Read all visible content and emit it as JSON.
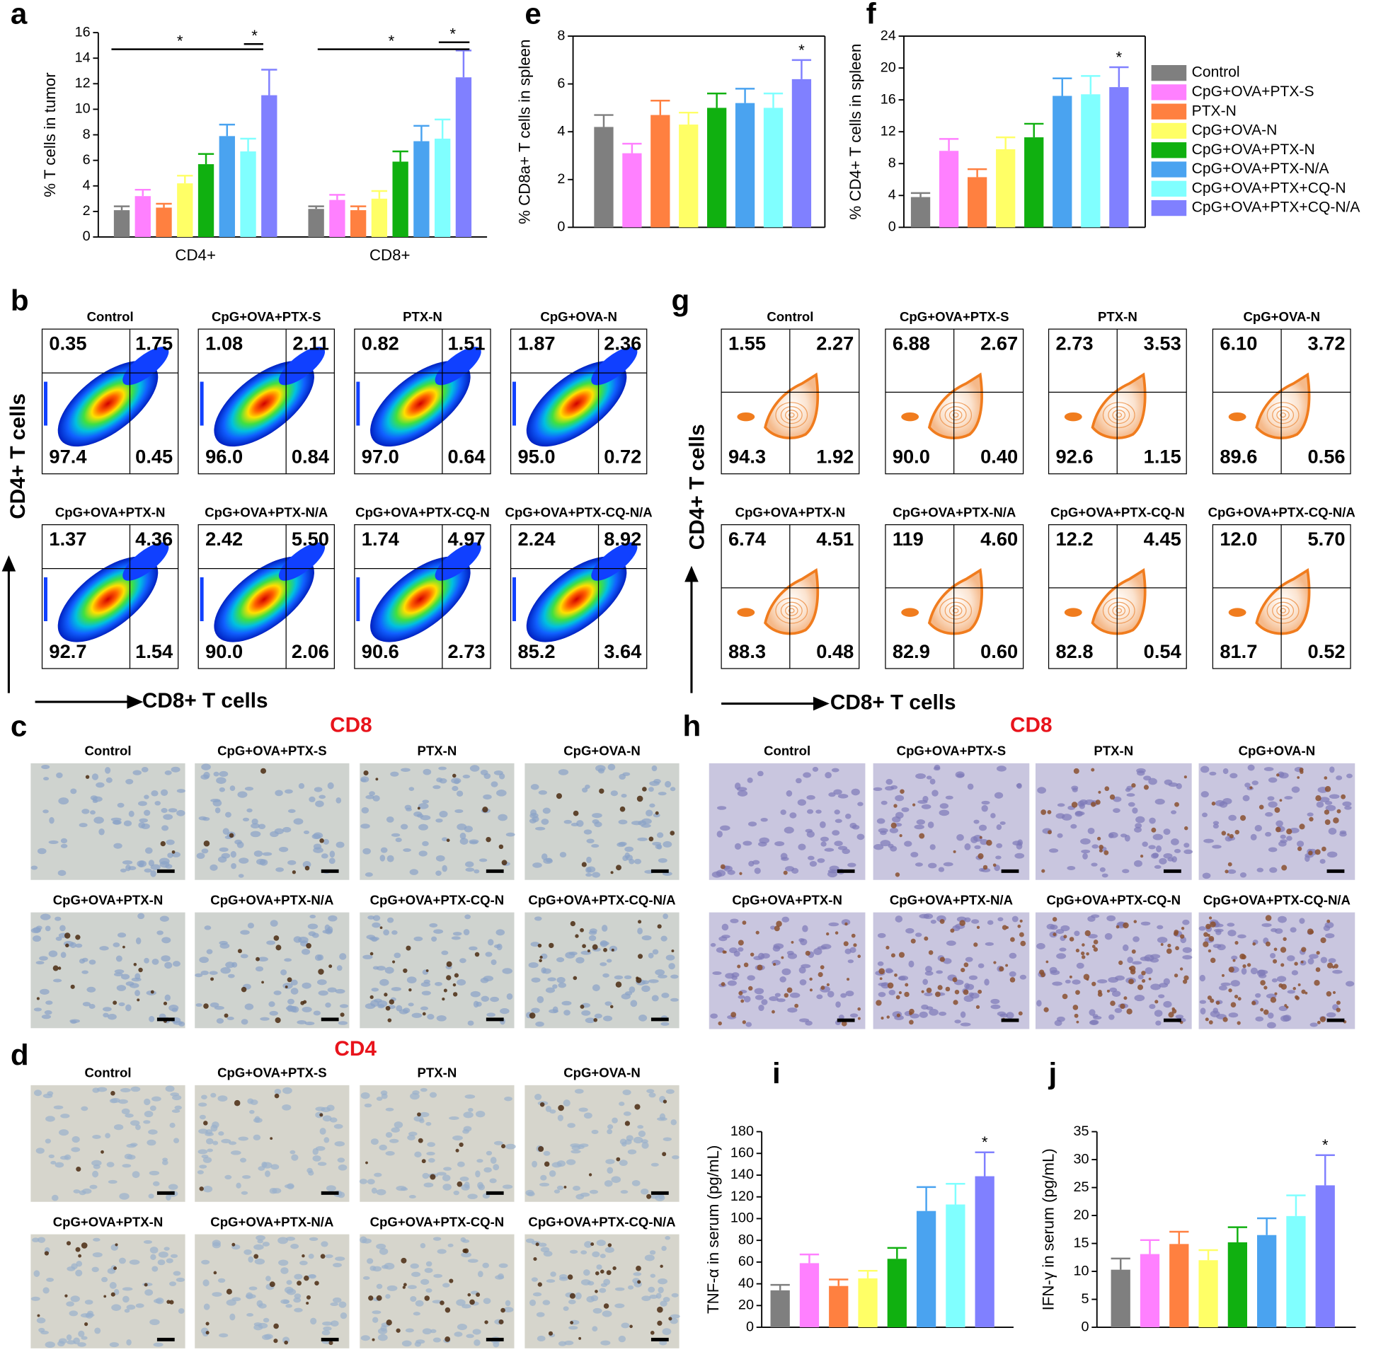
{
  "legend": {
    "names": [
      "Control",
      "CpG+OVA+PTX-S",
      "PTX-N",
      "CpG+OVA-N",
      "CpG+OVA+PTX-N",
      "CpG+OVA+PTX-N/A",
      "CpG+OVA+PTX+CQ-N",
      "CpG+OVA+PTX+CQ-N/A"
    ],
    "colors": [
      "#7f7f7f",
      "#ff80ff",
      "#ff8040",
      "#ffff66",
      "#10b010",
      "#4aa3f0",
      "#80ffff",
      "#8080ff"
    ]
  },
  "chart_data": [
    {
      "type": "bar",
      "letter": "a",
      "y_label": "% T cells in tumor",
      "categories": [
        "CD4+",
        "CD8+"
      ],
      "series": [
        {
          "values": [
            2.1,
            2.2
          ],
          "errors": [
            0.3,
            0.2
          ]
        },
        {
          "values": [
            3.2,
            2.9
          ],
          "errors": [
            0.5,
            0.4
          ]
        },
        {
          "values": [
            2.3,
            2.1
          ],
          "errors": [
            0.3,
            0.3
          ]
        },
        {
          "values": [
            4.2,
            3.0
          ],
          "errors": [
            0.6,
            0.6
          ]
        },
        {
          "values": [
            5.7,
            5.9
          ],
          "errors": [
            0.8,
            0.8
          ]
        },
        {
          "values": [
            7.9,
            7.5
          ],
          "errors": [
            0.9,
            1.2
          ]
        },
        {
          "values": [
            6.7,
            7.7
          ],
          "errors": [
            1.0,
            1.5
          ]
        },
        {
          "values": [
            11.1,
            12.5
          ],
          "errors": [
            2.0,
            2.1
          ]
        }
      ],
      "ylim": [
        0,
        16
      ],
      "yticks": [
        0,
        2,
        4,
        6,
        8,
        10,
        12,
        14,
        16
      ],
      "annotations": [
        "*",
        "*",
        "*",
        "*"
      ]
    },
    {
      "type": "bar",
      "letter": "e",
      "y_label": "% CD8a+ T cells in spleen",
      "values": [
        4.2,
        3.1,
        4.7,
        4.3,
        5.0,
        5.2,
        5.0,
        6.2
      ],
      "errors": [
        0.5,
        0.4,
        0.6,
        0.5,
        0.6,
        0.6,
        0.6,
        0.8
      ],
      "ylim": [
        0,
        8
      ],
      "yticks": [
        0,
        2,
        4,
        6,
        8
      ],
      "annotation": "*"
    },
    {
      "type": "bar",
      "letter": "f",
      "y_label": "% CD4+ T cells in spleen",
      "values": [
        3.8,
        9.6,
        6.3,
        9.8,
        11.3,
        16.5,
        16.7,
        17.6
      ],
      "errors": [
        0.5,
        1.5,
        1.0,
        1.5,
        1.7,
        2.2,
        2.3,
        2.5
      ],
      "ylim": [
        0,
        24
      ],
      "yticks": [
        0,
        4,
        8,
        12,
        16,
        20,
        24
      ],
      "annotation": "*"
    },
    {
      "type": "bar",
      "letter": "i",
      "y_label": "TNF-α in serum (pg/mL)",
      "values": [
        34,
        59,
        38,
        45,
        63,
        107,
        113,
        139
      ],
      "errors": [
        5,
        8,
        6,
        7,
        10,
        22,
        19,
        22
      ],
      "ylim": [
        0,
        180
      ],
      "yticks": [
        0,
        20,
        40,
        60,
        80,
        100,
        120,
        140,
        160,
        180
      ],
      "annotation": "*"
    },
    {
      "type": "bar",
      "letter": "j",
      "y_label": "IFN-γ in serum (pg/mL)",
      "values": [
        10.3,
        13.1,
        14.9,
        12.0,
        15.2,
        16.5,
        19.9,
        25.4
      ],
      "errors": [
        2.0,
        2.5,
        2.2,
        1.8,
        2.7,
        3.0,
        3.7,
        5.4
      ],
      "ylim": [
        0,
        35
      ],
      "yticks": [
        0,
        5,
        10,
        15,
        20,
        25,
        30,
        35
      ],
      "annotation": "*"
    }
  ],
  "flow": [
    {
      "letter": "b",
      "x_label": "CD8+ T cells",
      "y_label": "CD4+ T cells",
      "plots": [
        {
          "title": "Control",
          "quadrants": [
            "0.35",
            "1.75",
            "97.4",
            "0.45"
          ]
        },
        {
          "title": "CpG+OVA+PTX-S",
          "quadrants": [
            "1.08",
            "2.11",
            "96.0",
            "0.84"
          ]
        },
        {
          "title": "PTX-N",
          "quadrants": [
            "0.82",
            "1.51",
            "97.0",
            "0.64"
          ]
        },
        {
          "title": "CpG+OVA-N",
          "quadrants": [
            "1.87",
            "2.36",
            "95.0",
            "0.72"
          ]
        },
        {
          "title": "CpG+OVA+PTX-N",
          "quadrants": [
            "1.37",
            "4.36",
            "92.7",
            "1.54"
          ]
        },
        {
          "title": "CpG+OVA+PTX-N/A",
          "quadrants": [
            "2.42",
            "5.50",
            "90.0",
            "2.06"
          ]
        },
        {
          "title": "CpG+OVA+PTX-CQ-N",
          "quadrants": [
            "1.74",
            "4.97",
            "90.6",
            "2.73"
          ]
        },
        {
          "title": "CpG+OVA+PTX-CQ-N/A",
          "quadrants": [
            "2.24",
            "8.92",
            "85.2",
            "3.64"
          ]
        }
      ]
    },
    {
      "letter": "g",
      "x_label": "CD8+ T cells",
      "y_label": "CD4+ T cells",
      "plots": [
        {
          "title": "Control",
          "quadrants": [
            "1.55",
            "2.27",
            "94.3",
            "1.92"
          ]
        },
        {
          "title": "CpG+OVA+PTX-S",
          "quadrants": [
            "6.88",
            "2.67",
            "90.0",
            "0.40"
          ]
        },
        {
          "title": "PTX-N",
          "quadrants": [
            "2.73",
            "3.53",
            "92.6",
            "1.15"
          ]
        },
        {
          "title": "CpG+OVA-N",
          "quadrants": [
            "6.10",
            "3.72",
            "89.6",
            "0.56"
          ]
        },
        {
          "title": "CpG+OVA+PTX-N",
          "quadrants": [
            "6.74",
            "4.51",
            "88.3",
            "0.48"
          ]
        },
        {
          "title": "CpG+OVA+PTX-N/A",
          "quadrants": [
            "119",
            "4.60",
            "82.9",
            "0.60"
          ]
        },
        {
          "title": "CpG+OVA+PTX-CQ-N",
          "quadrants": [
            "12.2",
            "4.45",
            "82.8",
            "0.54"
          ]
        },
        {
          "title": "CpG+OVA+PTX-CQ-N/A",
          "quadrants": [
            "12.0",
            "5.70",
            "81.7",
            "0.52"
          ]
        }
      ]
    }
  ],
  "histology": [
    {
      "letter": "c",
      "marker": "CD8",
      "titles": [
        "Control",
        "CpG+OVA+PTX-S",
        "PTX-N",
        "CpG+OVA-N",
        "CpG+OVA+PTX-N",
        "CpG+OVA+PTX-N/A",
        "CpG+OVA+PTX-CQ-N",
        "CpG+OVA+PTX-CQ-N/A"
      ]
    },
    {
      "letter": "d",
      "marker": "CD4",
      "titles": [
        "Control",
        "CpG+OVA+PTX-S",
        "PTX-N",
        "CpG+OVA-N",
        "CpG+OVA+PTX-N",
        "CpG+OVA+PTX-N/A",
        "CpG+OVA+PTX-CQ-N",
        "CpG+OVA+PTX-CQ-N/A"
      ]
    },
    {
      "letter": "h",
      "marker": "CD8",
      "titles": [
        "Control",
        "CpG+OVA+PTX-S",
        "PTX-N",
        "CpG+OVA-N",
        "CpG+OVA+PTX-N",
        "CpG+OVA+PTX-N/A",
        "CpG+OVA+PTX-CQ-N",
        "CpG+OVA+PTX-CQ-N/A"
      ]
    }
  ]
}
